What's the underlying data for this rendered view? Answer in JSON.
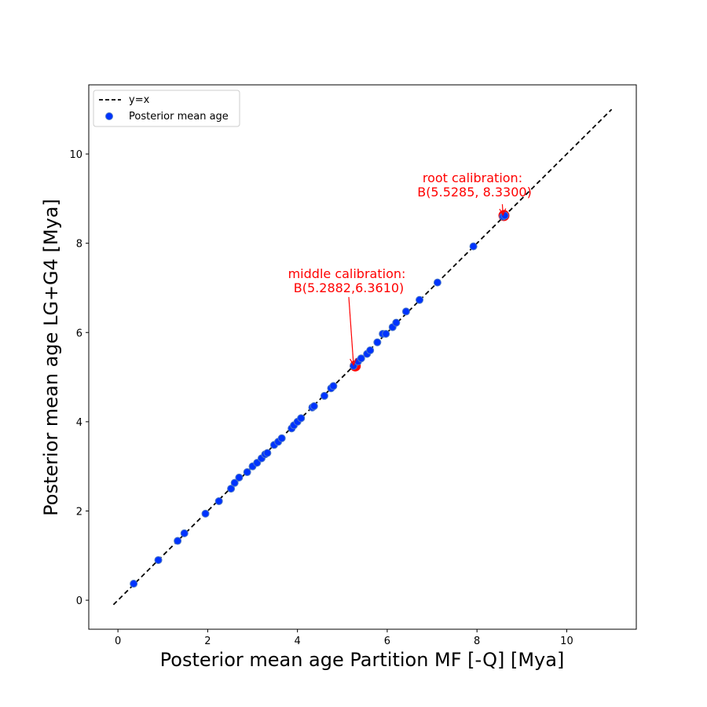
{
  "chart_data": {
    "type": "scatter",
    "title": "",
    "xlabel": "Posterior mean age Partition MF [-Q] [Mya]",
    "ylabel": "Posterior mean age LG+G4 [Mya]",
    "xlim": [
      -0.65,
      11.55
    ],
    "ylim": [
      -0.65,
      11.55
    ],
    "xticks": [
      0,
      2,
      4,
      6,
      8,
      10
    ],
    "yticks": [
      0,
      2,
      4,
      6,
      8,
      10
    ],
    "grid": false,
    "legend": {
      "placement": "top-left",
      "entries": [
        "y=x",
        "Posterior mean age"
      ]
    },
    "series": [
      {
        "name": "y=x",
        "style": "dashed-line",
        "color": "#000000",
        "x": [
          -0.1,
          11.0
        ],
        "y": [
          -0.1,
          11.0
        ]
      },
      {
        "name": "Posterior mean age",
        "style": "markers",
        "color": "#0033ff",
        "edgecolor": "#4d79c7",
        "x": [
          0.35,
          0.9,
          1.33,
          1.48,
          1.95,
          2.25,
          2.52,
          2.6,
          2.7,
          2.88,
          3.0,
          3.1,
          3.2,
          3.28,
          3.33,
          3.48,
          3.57,
          3.65,
          3.87,
          3.92,
          4.0,
          4.08,
          4.33,
          4.37,
          4.6,
          4.75,
          4.8,
          5.25,
          5.35,
          5.42,
          5.55,
          5.62,
          5.78,
          5.9,
          5.97,
          6.12,
          6.2,
          6.42,
          6.72,
          7.12,
          7.92,
          8.58,
          8.62
        ],
        "y": [
          0.37,
          0.9,
          1.33,
          1.5,
          1.94,
          2.22,
          2.5,
          2.63,
          2.75,
          2.87,
          3.0,
          3.08,
          3.18,
          3.27,
          3.3,
          3.48,
          3.55,
          3.63,
          3.85,
          3.92,
          4.0,
          4.08,
          4.32,
          4.35,
          4.58,
          4.75,
          4.8,
          5.25,
          5.35,
          5.42,
          5.52,
          5.6,
          5.78,
          5.97,
          5.97,
          6.12,
          6.22,
          6.47,
          6.73,
          7.12,
          7.93,
          8.6,
          8.62
        ]
      }
    ],
    "highlights": [
      {
        "x": 5.2882,
        "y": 5.25,
        "color": "#ff0000"
      },
      {
        "x": 8.6,
        "y": 8.62,
        "color": "#ff0000"
      }
    ],
    "annotations": [
      {
        "text_lines": [
          "middle calibration:",
          " B(5.2882,6.3610)"
        ],
        "color": "#ff0000",
        "text_x": 5.1,
        "text_y": 6.9,
        "arrow_to": [
          5.25,
          5.27
        ]
      },
      {
        "text_lines": [
          "root calibration:",
          " B(5.5285, 8.3300)"
        ],
        "color": "#ff0000",
        "text_x": 7.9,
        "text_y": 9.05,
        "arrow_to": [
          8.58,
          8.63
        ]
      }
    ]
  }
}
